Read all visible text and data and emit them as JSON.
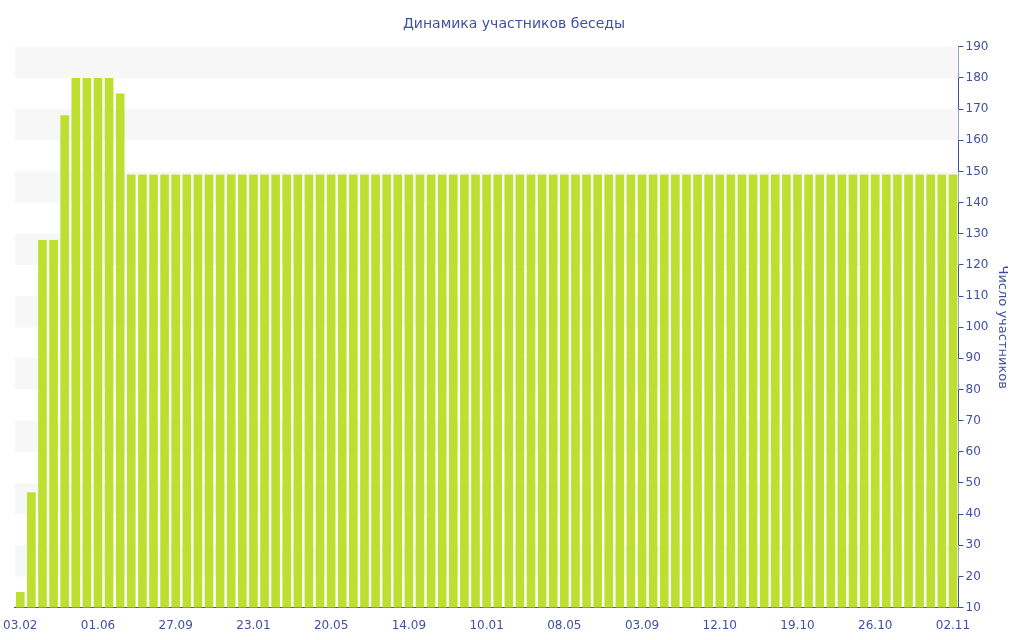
{
  "chart_data": {
    "type": "bar",
    "title": "Динамика участников беседы",
    "ylabel": "Число участников",
    "categories": [
      "03.02",
      null,
      null,
      null,
      null,
      null,
      null,
      "01.06",
      null,
      null,
      null,
      null,
      null,
      null,
      "27.09",
      null,
      null,
      null,
      null,
      null,
      null,
      "23.01",
      null,
      null,
      null,
      null,
      null,
      null,
      "20.05",
      null,
      null,
      null,
      null,
      null,
      null,
      "14.09",
      null,
      null,
      null,
      null,
      null,
      null,
      "10.01",
      null,
      null,
      null,
      null,
      null,
      null,
      "08.05",
      null,
      null,
      null,
      null,
      null,
      null,
      "03.09",
      null,
      null,
      null,
      null,
      null,
      null,
      "12.10",
      null,
      null,
      null,
      null,
      null,
      null,
      "19.10",
      null,
      null,
      null,
      null,
      null,
      null,
      "26.10",
      null,
      null,
      null,
      null,
      null,
      null,
      "02.11"
    ],
    "values": [
      15,
      47,
      128,
      128,
      168,
      180,
      180,
      180,
      180,
      175,
      149,
      149,
      149,
      149,
      149,
      149,
      149,
      149,
      149,
      149,
      149,
      149,
      149,
      149,
      149,
      149,
      149,
      149,
      149,
      149,
      149,
      149,
      149,
      149,
      149,
      149,
      149,
      149,
      149,
      149,
      149,
      149,
      149,
      149,
      149,
      149,
      149,
      149,
      149,
      149,
      149,
      149,
      149,
      149,
      149,
      149,
      149,
      149,
      149,
      149,
      149,
      149,
      149,
      149,
      149,
      149,
      149,
      149,
      149,
      149,
      149,
      149,
      149,
      149,
      149,
      149,
      149,
      149,
      149,
      149,
      149,
      149,
      149,
      149,
      149
    ],
    "color": "#bedf30",
    "ylim": [
      10,
      190
    ],
    "yticks": [
      10,
      20,
      30,
      40,
      50,
      60,
      70,
      80,
      90,
      100,
      110,
      120,
      130,
      140,
      150,
      160,
      170,
      180,
      190
    ],
    "legend": false,
    "bands": [
      {
        "axis": "y",
        "from": 20,
        "to": 30,
        "color": "#f7f7f7"
      },
      {
        "axis": "y",
        "from": 40,
        "to": 50,
        "color": "#f7f7f7"
      },
      {
        "axis": "y",
        "from": 60,
        "to": 70,
        "color": "#f7f7f7"
      },
      {
        "axis": "y",
        "from": 80,
        "to": 90,
        "color": "#f7f7f7"
      },
      {
        "axis": "y",
        "from": 100,
        "to": 110,
        "color": "#f7f7f7"
      },
      {
        "axis": "y",
        "from": 120,
        "to": 130,
        "color": "#f7f7f7"
      },
      {
        "axis": "y",
        "from": 140,
        "to": 150,
        "color": "#f7f7f7"
      },
      {
        "axis": "y",
        "from": 160,
        "to": 170,
        "color": "#f7f7f7"
      },
      {
        "axis": "y",
        "from": 180,
        "to": 190,
        "color": "#f7f7f7"
      }
    ]
  }
}
